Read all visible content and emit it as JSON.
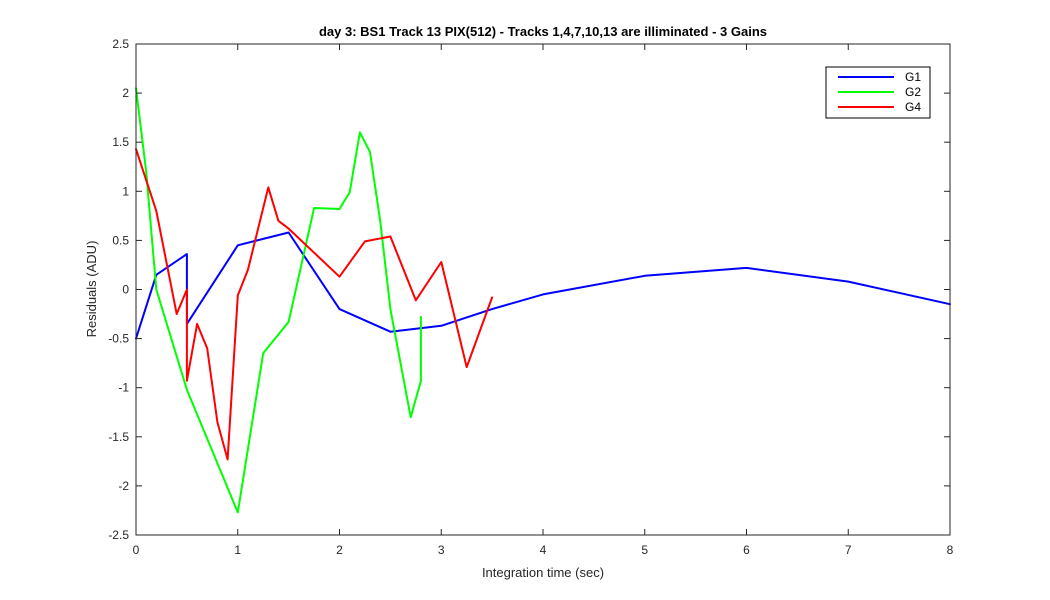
{
  "chart_data": {
    "type": "line",
    "title": "day 3: BS1  Track 13 PIX(512) - Tracks 1,4,7,10,13 are illiminated - 3 Gains",
    "xlabel": "Integration time (sec)",
    "ylabel": "Residuals (ADU)",
    "xlim": [
      0,
      8
    ],
    "ylim": [
      -2.5,
      2.5
    ],
    "xticks": [
      0,
      1,
      2,
      3,
      4,
      5,
      6,
      7,
      8
    ],
    "yticks": [
      -2.5,
      -2,
      -1.5,
      -1,
      -0.5,
      0,
      0.5,
      1,
      1.5,
      2,
      2.5
    ],
    "xtick_labels": [
      "0",
      "1",
      "2",
      "3",
      "4",
      "5",
      "6",
      "7",
      "8"
    ],
    "ytick_labels": [
      "-2.5",
      "-2",
      "-1.5",
      "-1",
      "-0.5",
      "0",
      "0.5",
      "1",
      "1.5",
      "2",
      "2.5"
    ],
    "grid": false,
    "legend_position": "top-right",
    "series": [
      {
        "name": "G1",
        "color": "#0000ff",
        "x": [
          0,
          0.2,
          0.5,
          0.5,
          1.0,
          1.5,
          2.0,
          2.5,
          3.0,
          3.5,
          4.0,
          5.0,
          6.0,
          7.0,
          8.0
        ],
        "y": [
          -0.5,
          0.15,
          0.36,
          -0.35,
          0.45,
          0.58,
          -0.2,
          -0.43,
          -0.37,
          -0.2,
          -0.05,
          0.14,
          0.22,
          0.08,
          -0.15
        ]
      },
      {
        "name": "G2",
        "color": "#00ff00",
        "x": [
          0,
          0.1,
          0.2,
          0.5,
          1.0,
          1.25,
          1.5,
          1.75,
          2.0,
          2.1,
          2.2,
          2.3,
          2.4,
          2.5,
          2.7,
          2.8,
          2.8
        ],
        "y": [
          2.05,
          1.2,
          0.0,
          -1.02,
          -2.27,
          -0.65,
          -0.33,
          0.83,
          0.82,
          0.99,
          1.6,
          1.4,
          0.7,
          -0.2,
          -1.3,
          -0.93,
          -0.28
        ]
      },
      {
        "name": "G4",
        "color": "#ff0000",
        "x": [
          0,
          0.2,
          0.4,
          0.5,
          0.5,
          0.6,
          0.7,
          0.8,
          0.9,
          1.0,
          1.1,
          1.3,
          1.4,
          1.5,
          2.0,
          2.25,
          2.5,
          2.75,
          3.0,
          3.25,
          3.5
        ],
        "y": [
          1.43,
          0.8,
          -0.25,
          0.0,
          -0.93,
          -0.35,
          -0.6,
          -1.35,
          -1.73,
          -0.06,
          0.2,
          1.04,
          0.7,
          0.62,
          0.13,
          0.49,
          0.54,
          -0.11,
          0.28,
          -0.79,
          -0.08
        ]
      }
    ]
  }
}
